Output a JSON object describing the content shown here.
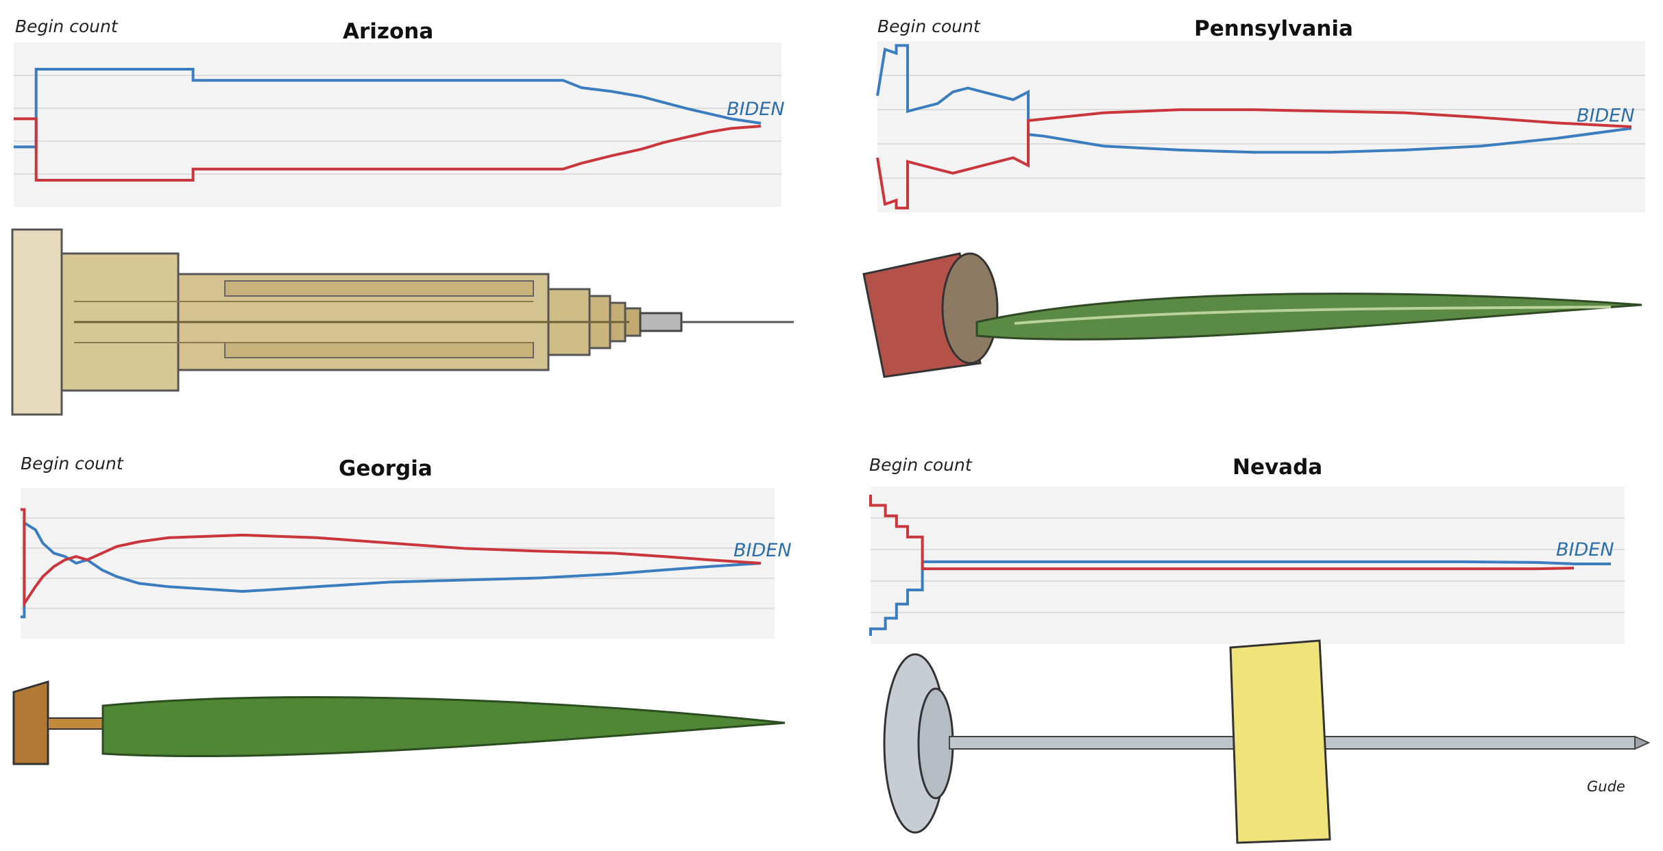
{
  "begin_label": "Begin count",
  "winner_label": "BIDEN",
  "credit": "Gude",
  "colors": {
    "biden": "#3b7dbf",
    "trump": "#c9373d",
    "panel_bg": "#f3f3f3",
    "grid": "#dcdcdc"
  },
  "chart_data": [
    {
      "type": "line",
      "title": "Arizona",
      "xlabel": "",
      "ylabel": "",
      "grid": true,
      "line_label": "BIDEN",
      "series": [
        {
          "name": "",
          "key": "biden",
          "x": [
            0,
            0.03,
            0.03,
            0.24,
            0.24,
            0.735,
            0.76,
            0.8,
            0.84,
            0.87,
            0.9,
            0.93,
            0.96,
            1.0
          ],
          "y": [
            -0.3,
            -0.3,
            0.75,
            0.75,
            0.6,
            0.6,
            0.5,
            0.45,
            0.38,
            0.3,
            0.22,
            0.15,
            0.08,
            0.02
          ]
        },
        {
          "name": "",
          "key": "trump",
          "x": [
            0,
            0.03,
            0.03,
            0.24,
            0.24,
            0.735,
            0.76,
            0.8,
            0.84,
            0.87,
            0.9,
            0.93,
            0.96,
            1.0
          ],
          "y": [
            0.08,
            0.08,
            -0.75,
            -0.75,
            -0.6,
            -0.6,
            -0.52,
            -0.42,
            -0.33,
            -0.24,
            -0.17,
            -0.1,
            -0.05,
            -0.02
          ]
        }
      ]
    },
    {
      "type": "line",
      "title": "Pennsylvania",
      "xlabel": "",
      "ylabel": "",
      "grid": true,
      "line_label": "BIDEN",
      "series": [
        {
          "name": "",
          "key": "biden",
          "x": [
            0,
            0.01,
            0.01,
            0.025,
            0.025,
            0.04,
            0.04,
            0.06,
            0.08,
            0.1,
            0.12,
            0.14,
            0.16,
            0.18,
            0.2,
            0.2,
            0.22,
            0.3,
            0.4,
            0.5,
            0.6,
            0.7,
            0.8,
            0.9,
            1.0
          ],
          "y": [
            0.4,
            1.0,
            1.0,
            0.95,
            1.05,
            1.05,
            0.2,
            0.25,
            0.3,
            0.45,
            0.5,
            0.45,
            0.4,
            0.35,
            0.45,
            -0.1,
            -0.12,
            -0.25,
            -0.3,
            -0.33,
            -0.33,
            -0.3,
            -0.25,
            -0.15,
            -0.02
          ]
        },
        {
          "name": "",
          "key": "trump",
          "x": [
            0,
            0.01,
            0.01,
            0.025,
            0.025,
            0.04,
            0.04,
            0.06,
            0.08,
            0.1,
            0.12,
            0.14,
            0.16,
            0.18,
            0.2,
            0.2,
            0.22,
            0.3,
            0.4,
            0.5,
            0.6,
            0.7,
            0.8,
            0.9,
            1.0
          ],
          "y": [
            -0.4,
            -1.0,
            -1.0,
            -0.95,
            -1.05,
            -1.05,
            -0.45,
            -0.5,
            -0.55,
            -0.6,
            -0.55,
            -0.5,
            -0.45,
            -0.4,
            -0.5,
            0.08,
            0.1,
            0.18,
            0.22,
            0.22,
            0.2,
            0.18,
            0.12,
            0.05,
            0.0
          ]
        }
      ]
    },
    {
      "type": "line",
      "title": "Georgia",
      "xlabel": "",
      "ylabel": "",
      "grid": true,
      "line_label": "BIDEN",
      "series": [
        {
          "name": "",
          "key": "biden",
          "x": [
            0,
            0.005,
            0.005,
            0.02,
            0.03,
            0.045,
            0.06,
            0.075,
            0.09,
            0.11,
            0.13,
            0.16,
            0.2,
            0.3,
            0.4,
            0.5,
            0.6,
            0.7,
            0.8,
            0.87,
            0.93,
            1.0
          ],
          "y": [
            -0.8,
            -0.8,
            0.6,
            0.5,
            0.3,
            0.15,
            0.1,
            0.0,
            0.05,
            -0.1,
            -0.2,
            -0.3,
            -0.35,
            -0.42,
            -0.35,
            -0.28,
            -0.25,
            -0.22,
            -0.16,
            -0.1,
            -0.05,
            0.0
          ]
        },
        {
          "name": "",
          "key": "trump",
          "x": [
            0,
            0.005,
            0.005,
            0.02,
            0.03,
            0.045,
            0.06,
            0.075,
            0.09,
            0.11,
            0.13,
            0.16,
            0.2,
            0.3,
            0.4,
            0.5,
            0.6,
            0.7,
            0.8,
            0.87,
            0.93,
            1.0
          ],
          "y": [
            0.8,
            0.8,
            -0.6,
            -0.35,
            -0.2,
            -0.05,
            0.05,
            0.1,
            0.05,
            0.15,
            0.25,
            0.32,
            0.38,
            0.42,
            0.38,
            0.3,
            0.22,
            0.18,
            0.15,
            0.1,
            0.05,
            0.0
          ]
        }
      ]
    },
    {
      "type": "line",
      "title": "Nevada",
      "xlabel": "",
      "ylabel": "",
      "grid": true,
      "line_label": "BIDEN",
      "series": [
        {
          "name": "",
          "key": "biden",
          "x": [
            0,
            0.0,
            0.02,
            0.02,
            0.035,
            0.035,
            0.05,
            0.05,
            0.07,
            0.07,
            0.1,
            0.2,
            0.4,
            0.6,
            0.8,
            0.9,
            0.95,
            1.0
          ],
          "y": [
            -1.0,
            -0.9,
            -0.9,
            -0.75,
            -0.75,
            -0.55,
            -0.55,
            -0.35,
            -0.35,
            0.05,
            0.05,
            0.05,
            0.05,
            0.05,
            0.05,
            0.04,
            0.02,
            0.02
          ]
        },
        {
          "name": "",
          "key": "trump",
          "x": [
            0,
            0.0,
            0.02,
            0.02,
            0.035,
            0.035,
            0.05,
            0.05,
            0.07,
            0.07,
            0.1,
            0.2,
            0.4,
            0.6,
            0.8,
            0.9,
            0.95
          ],
          "y": [
            1.0,
            0.85,
            0.85,
            0.7,
            0.7,
            0.55,
            0.55,
            0.4,
            0.4,
            -0.05,
            -0.05,
            -0.05,
            -0.05,
            -0.05,
            -0.05,
            -0.05,
            -0.04
          ]
        }
      ]
    }
  ]
}
